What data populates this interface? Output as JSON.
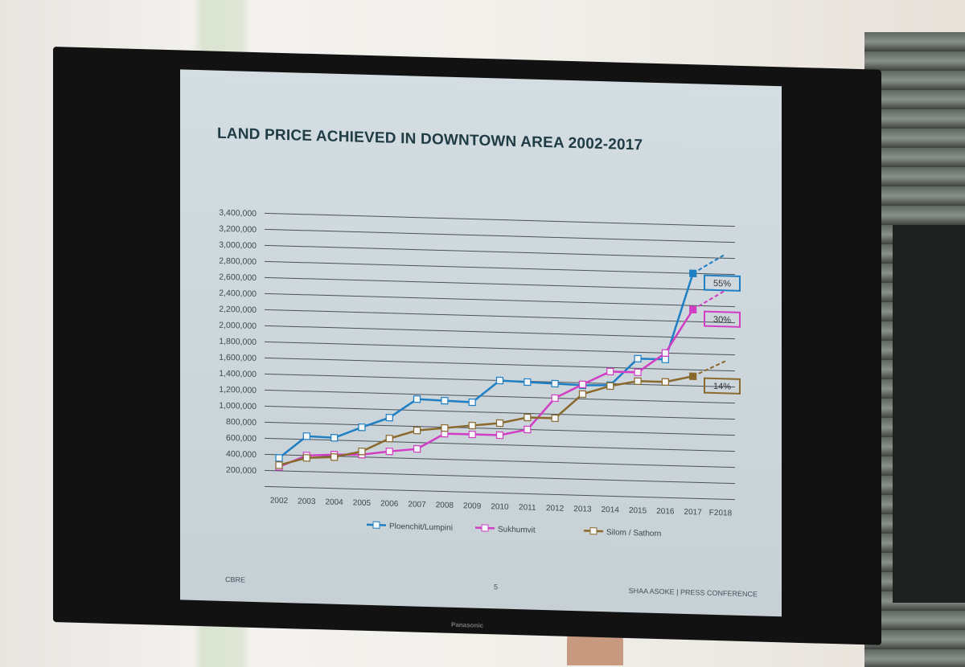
{
  "tv": {
    "brand": "Panasonic"
  },
  "slide": {
    "footer_left": "CBRE",
    "page_number": "5",
    "footer_right": "SHAA ASOKE | PRESS CONFERENCE"
  },
  "chart_data": {
    "type": "line",
    "title": "LAND PRICE ACHIEVED IN DOWNTOWN AREA 2002-2017",
    "xlabel": "",
    "ylabel": "",
    "categories": [
      "2002",
      "2003",
      "2004",
      "2005",
      "2006",
      "2007",
      "2008",
      "2009",
      "2010",
      "2011",
      "2012",
      "2013",
      "2014",
      "2015",
      "2016",
      "2017",
      "F2018"
    ],
    "y_ticks": [
      "200,000",
      "400,000",
      "600,000",
      "800,000",
      "1,000,000",
      "1,200,000",
      "1,400,000",
      "1,600,000",
      "1,800,000",
      "2,000,000",
      "2,200,000",
      "2,400,000",
      "2,600,000",
      "2,800,000",
      "3,000,000",
      "3,200,000",
      "3,400,000"
    ],
    "ylim": [
      0,
      3400000
    ],
    "grid": true,
    "legend_position": "bottom",
    "series": [
      {
        "name": "Ploenchit/Lumpini",
        "color": "#1f7fc4",
        "values": [
          360000,
          640000,
          630000,
          770000,
          900000,
          1140000,
          1130000,
          1120000,
          1400000,
          1390000,
          1380000,
          1370000,
          1380000,
          1720000,
          1720000,
          2800000,
          null
        ],
        "forecast_2018": 3050000,
        "annotation": "55%"
      },
      {
        "name": "Sukhumvit",
        "color": "#d13ec4",
        "values": [
          250000,
          400000,
          420000,
          430000,
          480000,
          520000,
          720000,
          720000,
          720000,
          800000,
          1200000,
          1380000,
          1550000,
          1550000,
          1800000,
          2350000,
          null
        ],
        "forecast_2018": 2600000,
        "annotation": "30%"
      },
      {
        "name": "Silom / Sathorn",
        "color": "#8a6a2c",
        "values": [
          270000,
          370000,
          390000,
          470000,
          640000,
          750000,
          790000,
          830000,
          870000,
          950000,
          950000,
          1260000,
          1370000,
          1440000,
          1440000,
          1520000,
          null
        ],
        "forecast_2018": 1720000,
        "annotation": "14%"
      }
    ]
  }
}
